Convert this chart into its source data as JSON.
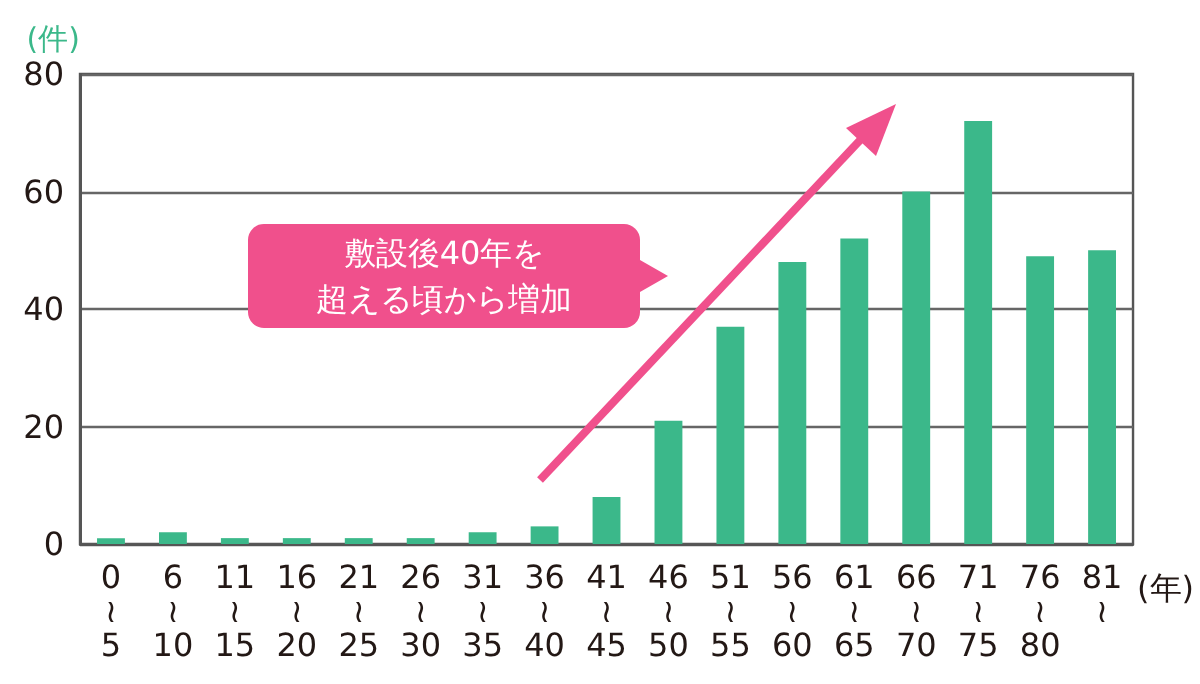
{
  "chart_data": {
    "type": "bar",
    "categories": [
      "0\n≀\n5",
      "6\n≀\n10",
      "11\n≀\n15",
      "16\n≀\n20",
      "21\n≀\n25",
      "26\n≀\n30",
      "31\n≀\n35",
      "36\n≀\n40",
      "41\n≀\n45",
      "46\n≀\n50",
      "51\n≀\n55",
      "56\n≀\n60",
      "61\n≀\n65",
      "66\n≀\n70",
      "71\n≀\n75",
      "76\n≀\n80",
      "81\n≀"
    ],
    "values": [
      1,
      2,
      1,
      1,
      1,
      1,
      2,
      3,
      8,
      21,
      37,
      48,
      52,
      60,
      72,
      49,
      50
    ],
    "color": "#3bb88a",
    "xlabel": "(年)",
    "ylabel": "(件)",
    "ylim": [
      0,
      80
    ],
    "yticks": [
      0,
      20,
      40,
      60,
      80
    ],
    "grid": "y",
    "annotations": [
      "敷設後40年を",
      "超える頃から増加"
    ]
  }
}
